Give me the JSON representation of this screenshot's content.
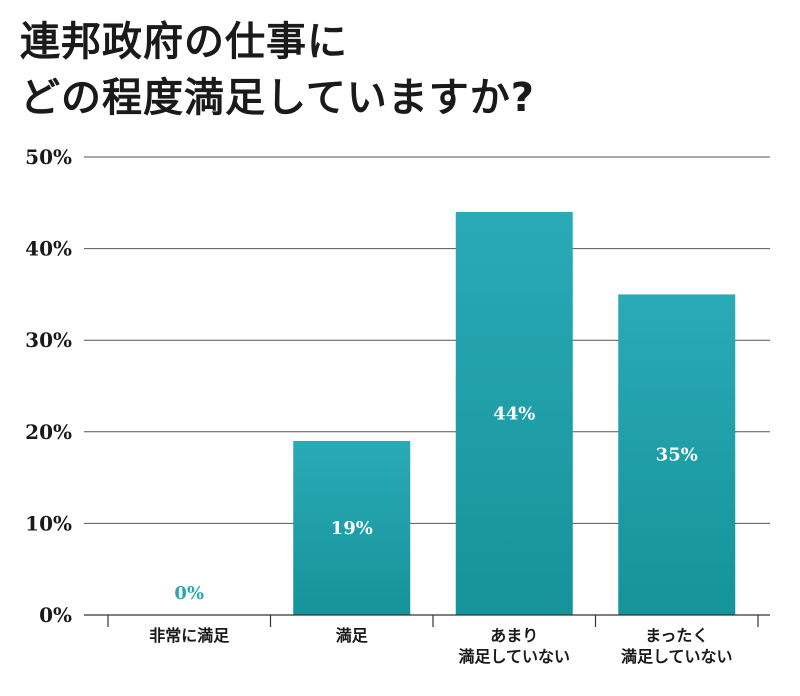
{
  "title_lines": [
    "連邦政府の仕事に",
    "どの程度満足していますか?"
  ],
  "colors": {
    "bar_top": "#2aaab6",
    "bar_bottom": "#15939a",
    "grid": "#555555",
    "zero_label": "#2aa7b2",
    "inside_label": "#ffffff"
  },
  "chart_data": {
    "type": "bar",
    "categories": [
      [
        "非常に満足"
      ],
      [
        "満足"
      ],
      [
        "あまり",
        "満足していない"
      ],
      [
        "まったく",
        "満足していない"
      ]
    ],
    "values": [
      0,
      19,
      44,
      35
    ],
    "data_labels": [
      "0%",
      "19%",
      "44%",
      "35%"
    ],
    "title": "連邦政府の仕事にどの程度満足していますか?",
    "xlabel": "",
    "ylabel": "",
    "ylim": [
      0,
      50
    ],
    "yticks": [
      0,
      10,
      20,
      30,
      40,
      50
    ],
    "ytick_labels": [
      "0%",
      "10%",
      "20%",
      "30%",
      "40%",
      "50%"
    ],
    "grid": true,
    "legend": "none"
  }
}
